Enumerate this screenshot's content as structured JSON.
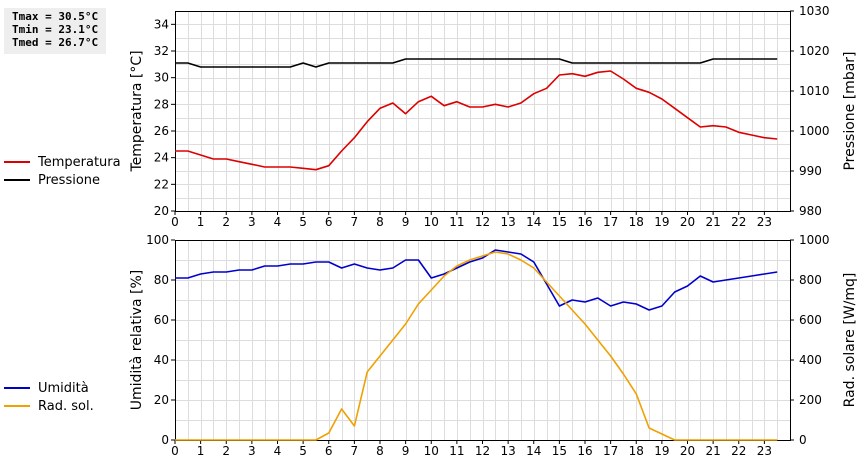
{
  "stats": {
    "tmax": "Tmax = 30.5°C",
    "tmin": "Tmin = 23.1°C",
    "tmed": "Tmed = 26.7°C"
  },
  "legend_top": [
    {
      "label": "Temperatura",
      "color": "#dd0000"
    },
    {
      "label": "Pressione",
      "color": "#000000"
    }
  ],
  "legend_bottom": [
    {
      "label": "Umidità",
      "color": "#0000cc"
    },
    {
      "label": "Rad. sol.",
      "color": "#f0a000"
    }
  ],
  "chart_data": [
    {
      "type": "line",
      "ylabel": "Temperatura [°C]",
      "ylabel_right": "Pressione [mbar]",
      "xlim": [
        0,
        24
      ],
      "ylim": [
        20,
        35
      ],
      "ylim_right": [
        980,
        1030
      ],
      "x_ticks": [
        0,
        1,
        2,
        3,
        4,
        5,
        6,
        7,
        8,
        9,
        10,
        11,
        12,
        13,
        14,
        15,
        16,
        17,
        18,
        19,
        20,
        21,
        22,
        23
      ],
      "y_ticks": [
        20,
        22,
        24,
        26,
        28,
        30,
        32,
        34
      ],
      "y_ticks_right": [
        980,
        990,
        1000,
        1010,
        1020,
        1030
      ],
      "grid": true,
      "series": [
        {
          "name": "Temperatura",
          "axis": "left",
          "color": "#dd0000",
          "x": [
            0,
            0.5,
            1,
            1.5,
            2,
            2.5,
            3,
            3.5,
            4,
            4.5,
            5,
            5.5,
            6,
            6.5,
            7,
            7.5,
            8,
            8.5,
            9,
            9.5,
            10,
            10.5,
            11,
            11.5,
            12,
            12.5,
            13,
            13.5,
            14,
            14.5,
            15,
            15.5,
            16,
            16.5,
            17,
            17.5,
            18,
            18.5,
            19,
            19.5,
            20,
            20.5,
            21,
            21.5,
            22,
            22.5,
            23,
            23.5
          ],
          "y": [
            24.5,
            24.5,
            24.2,
            23.9,
            23.9,
            23.7,
            23.5,
            23.3,
            23.3,
            23.3,
            23.2,
            23.1,
            23.4,
            24.5,
            25.5,
            26.7,
            27.7,
            28.1,
            27.3,
            28.2,
            28.6,
            27.9,
            28.2,
            27.8,
            27.8,
            28.0,
            27.8,
            28.1,
            28.8,
            29.2,
            30.2,
            30.3,
            30.1,
            30.4,
            30.5,
            29.9,
            29.2,
            28.9,
            28.4,
            27.7,
            27.0,
            26.3,
            26.4,
            26.3,
            25.9,
            25.7,
            25.5,
            25.4
          ]
        },
        {
          "name": "Pressione",
          "axis": "right",
          "color": "#000000",
          "x": [
            0,
            0.5,
            1,
            1.5,
            2,
            2.5,
            3,
            3.5,
            4,
            4.5,
            5,
            5.5,
            6,
            6.5,
            7,
            7.5,
            8,
            8.5,
            9,
            9.5,
            10,
            10.5,
            11,
            11.5,
            12,
            12.5,
            13,
            13.5,
            14,
            14.5,
            15,
            15.5,
            16,
            16.5,
            17,
            17.5,
            18,
            18.5,
            19,
            19.5,
            20,
            20.5,
            21,
            21.5,
            22,
            22.5,
            23,
            23.5
          ],
          "y": [
            1017,
            1017,
            1016,
            1016,
            1016,
            1016,
            1016,
            1016,
            1016,
            1016,
            1017,
            1016,
            1017,
            1017,
            1017,
            1017,
            1017,
            1017,
            1018,
            1018,
            1018,
            1018,
            1018,
            1018,
            1018,
            1018,
            1018,
            1018,
            1018,
            1018,
            1018,
            1017,
            1017,
            1017,
            1017,
            1017,
            1017,
            1017,
            1017,
            1017,
            1017,
            1017,
            1018,
            1018,
            1018,
            1018,
            1018,
            1018
          ]
        }
      ]
    },
    {
      "type": "line",
      "ylabel": "Umidità relativa [%]",
      "ylabel_right": "Rad. solare [W/mq]",
      "xlim": [
        0,
        24
      ],
      "ylim": [
        0,
        100
      ],
      "ylim_right": [
        0,
        1000
      ],
      "x_ticks": [
        0,
        1,
        2,
        3,
        4,
        5,
        6,
        7,
        8,
        9,
        10,
        11,
        12,
        13,
        14,
        15,
        16,
        17,
        18,
        19,
        20,
        21,
        22,
        23
      ],
      "y_ticks": [
        0,
        20,
        40,
        60,
        80,
        100
      ],
      "y_ticks_right": [
        0,
        200,
        400,
        600,
        800,
        1000
      ],
      "grid": true,
      "series": [
        {
          "name": "Umidità",
          "axis": "left",
          "color": "#0000cc",
          "x": [
            0,
            0.5,
            1,
            1.5,
            2,
            2.5,
            3,
            3.5,
            4,
            4.5,
            5,
            5.5,
            6,
            6.5,
            7,
            7.5,
            8,
            8.5,
            9,
            9.5,
            10,
            10.5,
            11,
            11.5,
            12,
            12.5,
            13,
            13.5,
            14,
            14.5,
            15,
            15.5,
            16,
            16.5,
            17,
            17.5,
            18,
            18.5,
            19,
            19.5,
            20,
            20.5,
            21,
            21.5,
            22,
            22.5,
            23,
            23.5
          ],
          "y": [
            81,
            81,
            83,
            84,
            84,
            85,
            85,
            87,
            87,
            88,
            88,
            89,
            89,
            86,
            88,
            86,
            85,
            86,
            90,
            90,
            81,
            83,
            86,
            89,
            91,
            95,
            94,
            93,
            89,
            78,
            67,
            70,
            69,
            71,
            67,
            69,
            68,
            65,
            67,
            74,
            77,
            82,
            79,
            80,
            81,
            82,
            83,
            84
          ]
        },
        {
          "name": "Rad. sol.",
          "axis": "right",
          "color": "#f0a000",
          "x": [
            0,
            0.5,
            1,
            1.5,
            2,
            2.5,
            3,
            3.5,
            4,
            4.5,
            5,
            5.5,
            6,
            6.5,
            7,
            7.5,
            8,
            8.5,
            9,
            9.5,
            10,
            10.5,
            11,
            11.5,
            12,
            12.5,
            13,
            13.5,
            14,
            14.5,
            15,
            15.5,
            16,
            16.5,
            17,
            17.5,
            18,
            18.5,
            19,
            19.5,
            20,
            20.5,
            21,
            21.5,
            22,
            22.5,
            23,
            23.5
          ],
          "y": [
            0,
            0,
            0,
            0,
            0,
            0,
            0,
            0,
            0,
            0,
            0,
            0,
            35,
            155,
            70,
            340,
            420,
            500,
            580,
            680,
            750,
            820,
            870,
            900,
            920,
            940,
            930,
            900,
            860,
            790,
            720,
            650,
            580,
            500,
            420,
            330,
            230,
            60,
            30,
            0,
            0,
            0,
            0,
            0,
            0,
            0,
            0,
            0
          ]
        }
      ]
    }
  ]
}
